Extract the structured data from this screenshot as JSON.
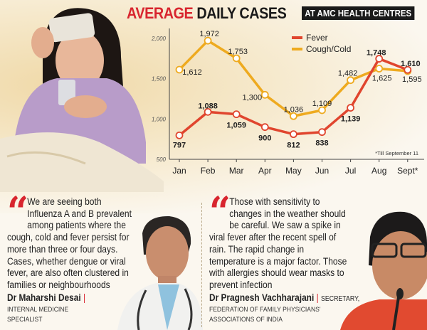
{
  "header": {
    "title_part1": "AVERAGE",
    "title_part2": "DAILY CASES",
    "subtitle": "AT AMC HEALTH CENTRES"
  },
  "chart_data": {
    "type": "line",
    "title": "AVERAGE DAILY CASES",
    "categories": [
      "Jan",
      "Feb",
      "Mar",
      "Apr",
      "May",
      "Jun",
      "Jul",
      "Aug",
      "Sept*"
    ],
    "ylim": [
      500,
      2100
    ],
    "yticks": [
      "500",
      "1,000",
      "1,500",
      "2,000"
    ],
    "ytick_values": [
      500,
      1000,
      1500,
      2000
    ],
    "legend_position": "top-right",
    "grid": false,
    "series": [
      {
        "name": "Fever",
        "color": "#e0452e",
        "values": [
          797,
          1088,
          1059,
          900,
          812,
          838,
          1139,
          1748,
          1610
        ],
        "labels": [
          "797",
          "1,088",
          "1,059",
          "900",
          "812",
          "838",
          "1,139",
          "1,748",
          "1,610"
        ]
      },
      {
        "name": "Cough/Cold",
        "color": "#eeaa1f",
        "values": [
          1612,
          1972,
          1753,
          1300,
          1036,
          1109,
          1482,
          1625,
          1595
        ],
        "labels": [
          "1,612",
          "1,972",
          "1,753",
          "1,300",
          "1,036",
          "1,109",
          "1,482",
          "1,625",
          "1,595"
        ]
      }
    ],
    "footnote": "*Till September 11"
  },
  "quotes": [
    {
      "text": "We are seeing both Influenza A and B prevalent among patients where the cough, cold and fever persist for more than three or four days. Cases, whether dengue or viral fever, are also often clustered in families or neighbourhoods",
      "name": "Dr Maharshi Desai",
      "role_line1": "INTERNAL MEDICINE",
      "role_line2": "SPECIALIST"
    },
    {
      "text": "Those with sensitivity to changes in the weather should be careful. We saw a spike in viral fever after the recent spell of rain. The rapid change in temperature is a major factor. Those with allergies should wear masks to prevent infection",
      "name": "Dr Pragnesh Vachharajani",
      "role_line1": "SECRETARY,",
      "role_line2": "FEDERATION OF FAMILY PHYSICIANS'",
      "role_line3": "ASSOCIATIONS OF INDIA"
    }
  ],
  "quote_mark": "“",
  "name_separator": "|"
}
